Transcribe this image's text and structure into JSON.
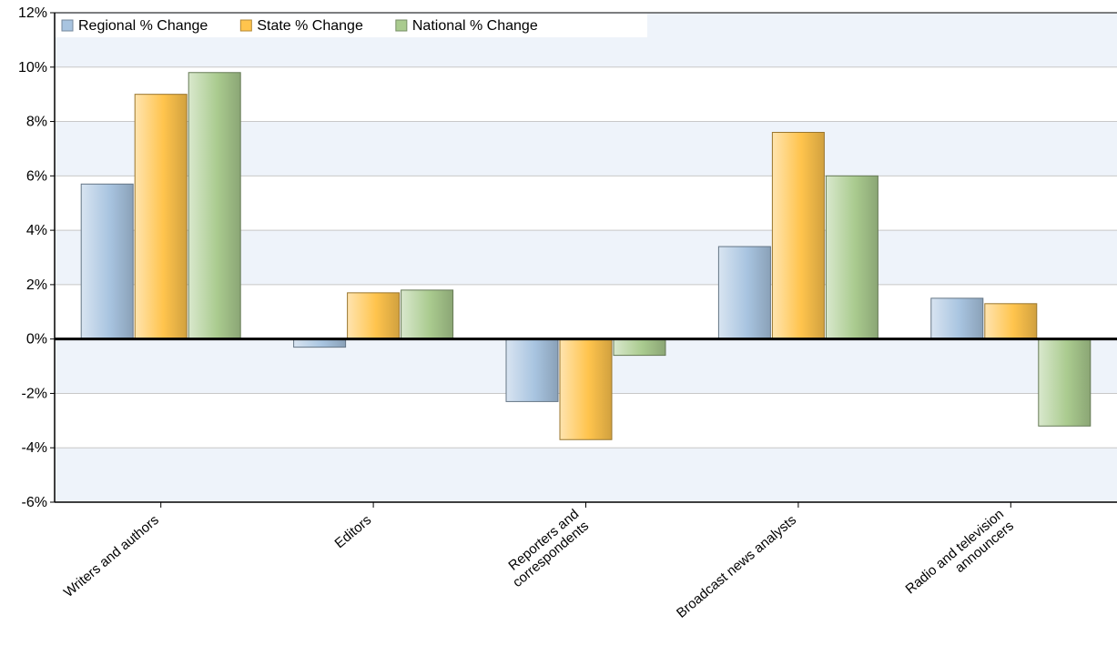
{
  "chart_data": {
    "type": "bar",
    "categories": [
      [
        "Writers and authors"
      ],
      [
        "Editors"
      ],
      [
        "Reporters and",
        "correspondents"
      ],
      [
        "Broadcast news analysts"
      ],
      [
        "Radio and television",
        "announcers"
      ]
    ],
    "series": [
      {
        "name": "Regional % Change",
        "values": [
          5.7,
          -0.3,
          -2.3,
          3.4,
          1.5
        ],
        "color": "#a8c4e0"
      },
      {
        "name": "State % Change",
        "values": [
          9.0,
          1.7,
          -3.7,
          7.6,
          1.3
        ],
        "color": "#ffc44d"
      },
      {
        "name": "National % Change",
        "values": [
          9.8,
          1.8,
          -0.6,
          6.0,
          -3.2
        ],
        "color": "#aacb8f"
      }
    ],
    "y_ticks": [
      "12%",
      "10%",
      "8%",
      "6%",
      "4%",
      "2%",
      "0%",
      "-2%",
      "-4%",
      "-6%"
    ],
    "ylim": [
      -6,
      12
    ],
    "grid": true,
    "legend_position": "top-left",
    "colors": {
      "band": "#eef3fa",
      "grid": "#c8c8c8",
      "axis": "#000000"
    }
  }
}
